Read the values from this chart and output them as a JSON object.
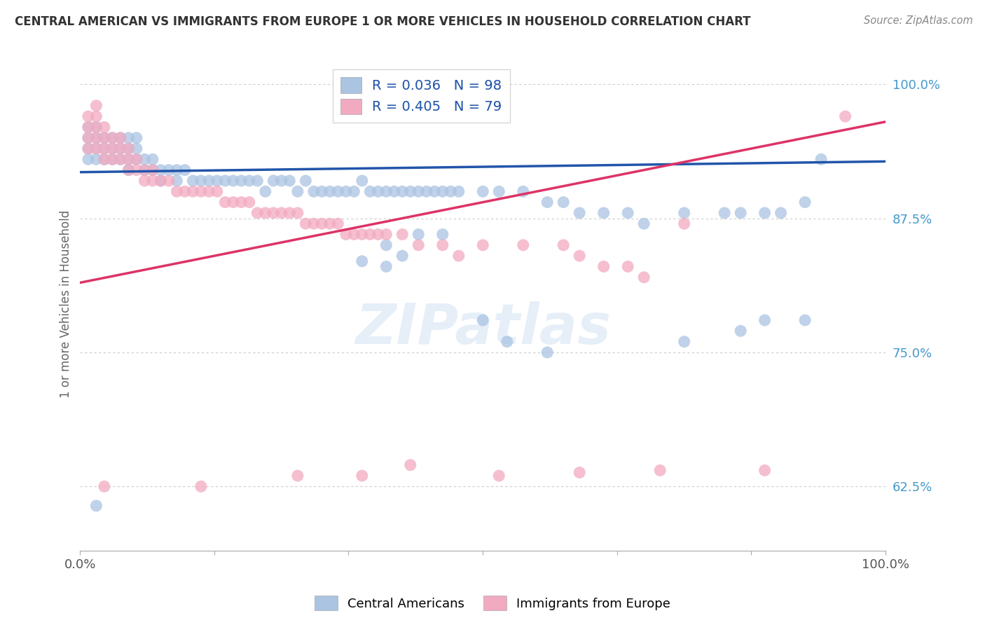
{
  "title": "CENTRAL AMERICAN VS IMMIGRANTS FROM EUROPE 1 OR MORE VEHICLES IN HOUSEHOLD CORRELATION CHART",
  "source": "Source: ZipAtlas.com",
  "ylabel": "1 or more Vehicles in Household",
  "legend_labels": [
    "Central Americans",
    "Immigrants from Europe"
  ],
  "blue_R": 0.036,
  "blue_N": 98,
  "pink_R": 0.405,
  "pink_N": 79,
  "blue_color": "#aac4e2",
  "pink_color": "#f2aac0",
  "blue_line_color": "#2255aa",
  "pink_line_color": "#dd3366",
  "xlim": [
    0.0,
    1.0
  ],
  "ylim": [
    0.565,
    1.025
  ],
  "yticks": [
    0.625,
    0.75,
    0.875,
    1.0
  ],
  "ytick_labels": [
    "62.5%",
    "75.0%",
    "87.5%",
    "100.0%"
  ],
  "xticks": [
    0.0,
    0.167,
    0.333,
    0.5,
    0.667,
    0.833,
    1.0
  ],
  "xtick_labels": [
    "0.0%",
    "",
    "",
    "",
    "",
    "",
    "100.0%"
  ],
  "background_color": "#ffffff",
  "watermark": "ZIPatlas",
  "blue_line_x0": 0.0,
  "blue_line_x1": 1.0,
  "blue_line_y0": 0.918,
  "blue_line_y1": 0.928,
  "pink_line_x0": 0.0,
  "pink_line_x1": 1.0,
  "pink_line_y0": 0.815,
  "pink_line_y1": 0.965,
  "blue_scatter_x": [
    0.01,
    0.01,
    0.01,
    0.01,
    0.02,
    0.02,
    0.02,
    0.02,
    0.03,
    0.03,
    0.03,
    0.04,
    0.04,
    0.04,
    0.05,
    0.05,
    0.05,
    0.06,
    0.06,
    0.06,
    0.06,
    0.07,
    0.07,
    0.07,
    0.08,
    0.08,
    0.09,
    0.09,
    0.1,
    0.1,
    0.11,
    0.12,
    0.12,
    0.13,
    0.14,
    0.15,
    0.16,
    0.17,
    0.18,
    0.19,
    0.2,
    0.21,
    0.22,
    0.23,
    0.24,
    0.25,
    0.26,
    0.27,
    0.28,
    0.29,
    0.3,
    0.31,
    0.32,
    0.33,
    0.34,
    0.35,
    0.36,
    0.37,
    0.38,
    0.39,
    0.4,
    0.41,
    0.42,
    0.43,
    0.44,
    0.45,
    0.46,
    0.47,
    0.5,
    0.52,
    0.55,
    0.58,
    0.6,
    0.62,
    0.65,
    0.68,
    0.7,
    0.75,
    0.8,
    0.82,
    0.85,
    0.87,
    0.9,
    0.92,
    0.02,
    0.35,
    0.38,
    0.42,
    0.45,
    0.38,
    0.4,
    0.5,
    0.53,
    0.58,
    0.75,
    0.82,
    0.85,
    0.9
  ],
  "blue_scatter_y": [
    0.93,
    0.94,
    0.95,
    0.96,
    0.93,
    0.94,
    0.95,
    0.96,
    0.93,
    0.94,
    0.95,
    0.93,
    0.94,
    0.95,
    0.93,
    0.94,
    0.95,
    0.92,
    0.93,
    0.94,
    0.95,
    0.93,
    0.94,
    0.95,
    0.92,
    0.93,
    0.92,
    0.93,
    0.91,
    0.92,
    0.92,
    0.91,
    0.92,
    0.92,
    0.91,
    0.91,
    0.91,
    0.91,
    0.91,
    0.91,
    0.91,
    0.91,
    0.91,
    0.9,
    0.91,
    0.91,
    0.91,
    0.9,
    0.91,
    0.9,
    0.9,
    0.9,
    0.9,
    0.9,
    0.9,
    0.91,
    0.9,
    0.9,
    0.9,
    0.9,
    0.9,
    0.9,
    0.9,
    0.9,
    0.9,
    0.9,
    0.9,
    0.9,
    0.9,
    0.9,
    0.9,
    0.89,
    0.89,
    0.88,
    0.88,
    0.88,
    0.87,
    0.88,
    0.88,
    0.88,
    0.88,
    0.88,
    0.89,
    0.93,
    0.607,
    0.835,
    0.85,
    0.86,
    0.86,
    0.83,
    0.84,
    0.78,
    0.76,
    0.75,
    0.76,
    0.77,
    0.78,
    0.78
  ],
  "pink_scatter_x": [
    0.01,
    0.01,
    0.01,
    0.01,
    0.02,
    0.02,
    0.02,
    0.02,
    0.02,
    0.03,
    0.03,
    0.03,
    0.03,
    0.04,
    0.04,
    0.04,
    0.05,
    0.05,
    0.05,
    0.06,
    0.06,
    0.06,
    0.07,
    0.07,
    0.08,
    0.08,
    0.09,
    0.09,
    0.1,
    0.11,
    0.12,
    0.13,
    0.14,
    0.15,
    0.16,
    0.17,
    0.18,
    0.19,
    0.2,
    0.21,
    0.22,
    0.23,
    0.24,
    0.25,
    0.26,
    0.27,
    0.28,
    0.29,
    0.3,
    0.31,
    0.32,
    0.33,
    0.34,
    0.35,
    0.36,
    0.37,
    0.38,
    0.4,
    0.42,
    0.45,
    0.47,
    0.5,
    0.55,
    0.6,
    0.62,
    0.65,
    0.68,
    0.7,
    0.75,
    0.03,
    0.15,
    0.27,
    0.35,
    0.41,
    0.52,
    0.62,
    0.72,
    0.85,
    0.95
  ],
  "pink_scatter_y": [
    0.94,
    0.95,
    0.96,
    0.97,
    0.94,
    0.95,
    0.96,
    0.97,
    0.98,
    0.93,
    0.94,
    0.95,
    0.96,
    0.93,
    0.94,
    0.95,
    0.93,
    0.94,
    0.95,
    0.92,
    0.93,
    0.94,
    0.92,
    0.93,
    0.91,
    0.92,
    0.91,
    0.92,
    0.91,
    0.91,
    0.9,
    0.9,
    0.9,
    0.9,
    0.9,
    0.9,
    0.89,
    0.89,
    0.89,
    0.89,
    0.88,
    0.88,
    0.88,
    0.88,
    0.88,
    0.88,
    0.87,
    0.87,
    0.87,
    0.87,
    0.87,
    0.86,
    0.86,
    0.86,
    0.86,
    0.86,
    0.86,
    0.86,
    0.85,
    0.85,
    0.84,
    0.85,
    0.85,
    0.85,
    0.84,
    0.83,
    0.83,
    0.82,
    0.87,
    0.625,
    0.625,
    0.635,
    0.635,
    0.645,
    0.635,
    0.638,
    0.64,
    0.64,
    0.97
  ]
}
